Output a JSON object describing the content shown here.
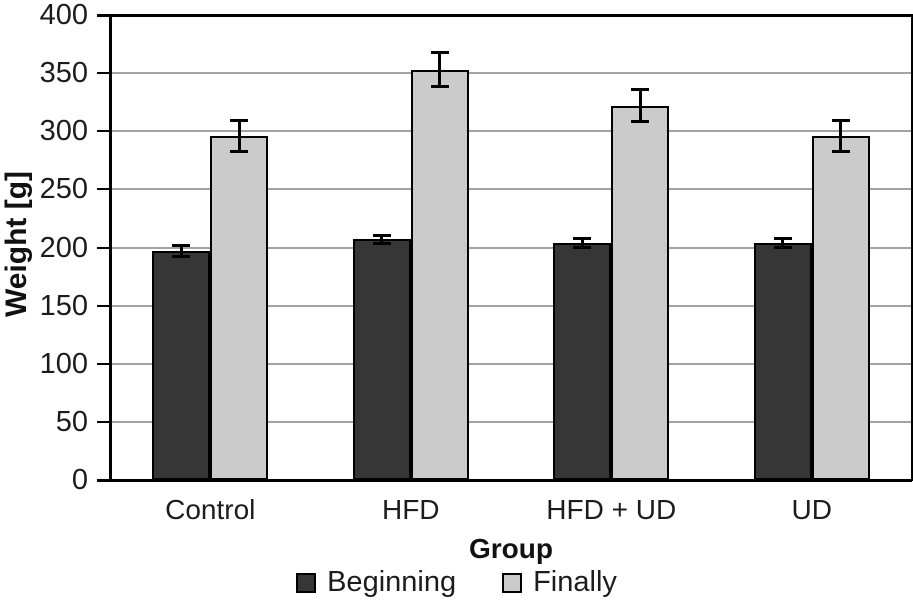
{
  "chart_data": {
    "type": "bar",
    "categories": [
      "Control",
      "HFD",
      "HFD + UD",
      "UD"
    ],
    "series": [
      {
        "name": "Beginning",
        "color": "#363636",
        "values": [
          197,
          207,
          204,
          204
        ],
        "errors": [
          5,
          4,
          4,
          4
        ]
      },
      {
        "name": "Finally",
        "color": "#cbcbcb",
        "values": [
          296,
          353,
          322,
          296
        ],
        "errors": [
          14,
          15,
          14,
          14
        ]
      }
    ],
    "xlabel": "Group",
    "ylabel": "Weight [g]",
    "ylim": [
      0,
      400
    ],
    "ytick_step": 50,
    "grid": true,
    "error_bars": true,
    "legend_position": "bottom",
    "colors": {
      "grid": "#a3a3a3",
      "axis": "#000000",
      "bar_border": "#000000",
      "text": "#1c1c1c"
    }
  }
}
